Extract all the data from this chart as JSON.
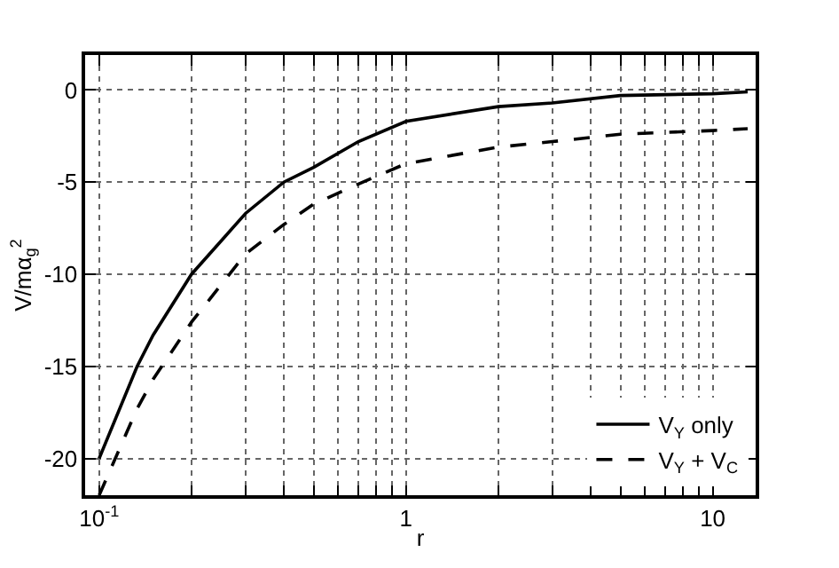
{
  "chart_data": {
    "type": "line",
    "xlabel": "r",
    "ylabel": "V/mα$_{g}$$^{2}$",
    "x": [
      0.1,
      0.133,
      0.15,
      0.2,
      0.3,
      0.4,
      0.5,
      0.7,
      1,
      2,
      3,
      5,
      10,
      13
    ],
    "series": [
      {
        "name": "V$_{Y}$ only",
        "color": "#000000",
        "line_style": "solid",
        "values": [
          -20,
          -15,
          -13.3,
          -10,
          -6.7,
          -5.0,
          -4.2,
          -2.8,
          -1.7,
          -0.9,
          -0.7,
          -0.3,
          -0.2,
          -0.1
        ]
      },
      {
        "name": "V$_{Y}$ + V$_{C}$",
        "color": "#000000",
        "line_style": "dashed",
        "values": [
          -22,
          -17.3,
          -15.7,
          -12.6,
          -8.9,
          -7.3,
          -6.2,
          -5.1,
          -4.0,
          -3.1,
          -2.8,
          -2.4,
          -2.2,
          -2.1
        ]
      }
    ],
    "log": "x",
    "xlim": [
      0.09,
      13.8
    ],
    "ylim": [
      -22,
      1.9
    ],
    "xticks": [
      {
        "value": 0.1,
        "label": "10$^{-1}$"
      },
      {
        "value": 0.2,
        "label": null
      },
      {
        "value": 0.3,
        "label": null
      },
      {
        "value": 0.4,
        "label": null
      },
      {
        "value": 0.5,
        "label": null
      },
      {
        "value": 0.6,
        "label": null
      },
      {
        "value": 0.7,
        "label": null
      },
      {
        "value": 0.8,
        "label": null
      },
      {
        "value": 0.9,
        "label": null
      },
      1,
      {
        "value": 2,
        "label": null
      },
      {
        "value": 3,
        "label": null
      },
      {
        "value": 4,
        "label": null
      },
      {
        "value": 5,
        "label": null
      },
      {
        "value": 6,
        "label": null
      },
      {
        "value": 7,
        "label": null
      },
      {
        "value": 8,
        "label": null
      },
      {
        "value": 9,
        "label": null
      },
      10
    ],
    "yticks": [
      -20,
      -15,
      -10,
      -5,
      0
    ],
    "grid": true,
    "legend": "bottom right",
    "marker": "none"
  }
}
